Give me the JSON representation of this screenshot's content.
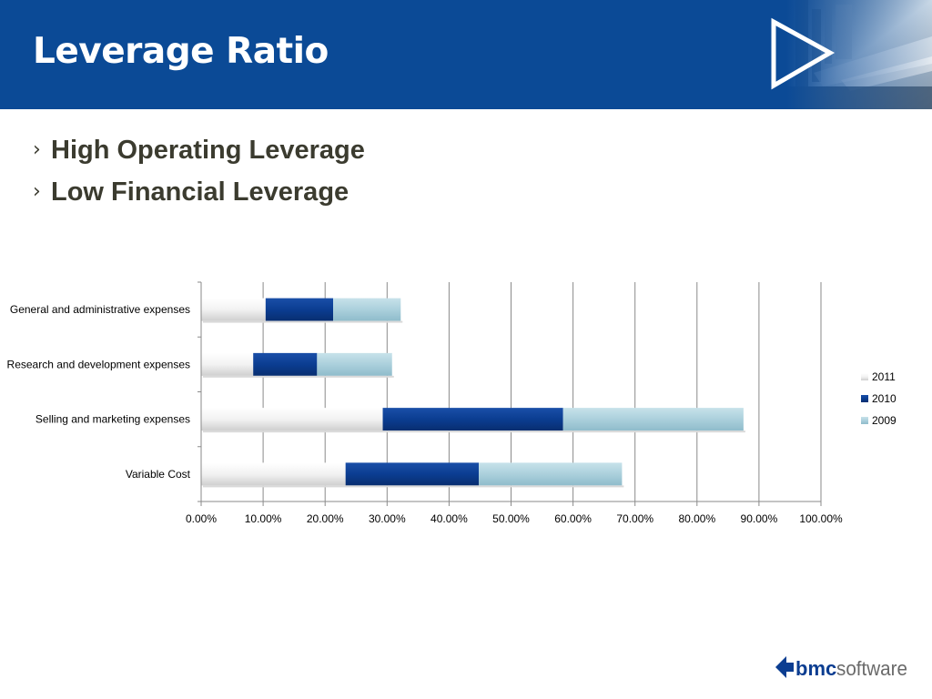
{
  "slide": {
    "title": "Leverage Ratio",
    "bullets": [
      {
        "label": "High Operating Leverage"
      },
      {
        "label": "Low Financial Leverage"
      }
    ],
    "logo_text": {
      "bold": "bmc",
      "regular": "software"
    }
  },
  "colors": {
    "header_bg": "#0b4a96",
    "series_2011": "#e6e6e6",
    "series_2010": "#0b3d91",
    "series_2009": "#a9cfdc"
  },
  "chart_data": {
    "type": "bar",
    "orientation": "horizontal",
    "stacked": true,
    "title": "",
    "xlabel": "",
    "ylabel": "",
    "xlim": [
      0,
      100
    ],
    "x_ticks": [
      "0.00%",
      "10.00%",
      "20.00%",
      "30.00%",
      "40.00%",
      "50.00%",
      "60.00%",
      "70.00%",
      "80.00%",
      "90.00%",
      "100.00%"
    ],
    "categories": [
      "General and administrative expenses",
      "Research and development expenses",
      "Selling and marketing expenses",
      "Variable Cost"
    ],
    "series": [
      {
        "name": "2011",
        "color": "#e6e6e6",
        "values": [
          10.4,
          8.4,
          29.3,
          23.3
        ]
      },
      {
        "name": "2010",
        "color": "#0b3d91",
        "values": [
          10.9,
          10.3,
          29.1,
          21.5
        ]
      },
      {
        "name": "2009",
        "color": "#a9cfdc",
        "values": [
          10.9,
          12.1,
          29.1,
          23.1
        ]
      }
    ],
    "legend_position": "right",
    "grid": "vertical"
  }
}
